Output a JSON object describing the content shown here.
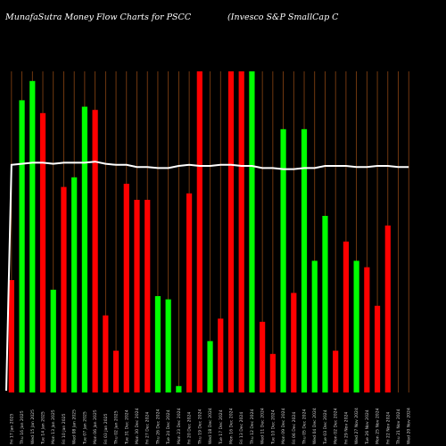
{
  "title_left": "MunafaSutra  Money Flow  Charts for PSCC",
  "title_right": "(Invesco  S&P  SmallCap  C",
  "colors": {
    "background": "#000000",
    "up": "#00ff00",
    "down": "#ff0000",
    "gridline": "#8b4513",
    "flow_line": "#ffffff"
  },
  "chart_data": {
    "type": "bar",
    "ylim": [
      0,
      100
    ],
    "categories": [
      "Fri 17 Jan 2025",
      "Thu 16 Jan 2025",
      "Wed 15 Jan 2025",
      "Tue 14 Jan 2025",
      "Mon 13 Jan 2025",
      "Fri 10 Jan 2025",
      "Wed 08 Jan 2025",
      "Tue 07 Jan 2025",
      "Mon 06 Jan 2025",
      "Fri 03 Jan 2025",
      "Thu 02 Jan 2025",
      "Tue 31 Dec 2024",
      "Mon 30 Dec 2024",
      "Fri 27 Dec 2024",
      "Thu 26 Dec 2024",
      "Tue 24 Dec 2024",
      "Mon 23 Dec 2024",
      "Fri 20 Dec 2024",
      "Thu 19 Dec 2024",
      "Wed 18 Dec 2024",
      "Tue 17 Dec 2024",
      "Mon 16 Dec 2024",
      "Fri 13 Dec 2024",
      "Thu 12 Dec 2024",
      "Wed 11 Dec 2024",
      "Tue 10 Dec 2024",
      "Mon 09 Dec 2024",
      "Fri 06 Dec 2024",
      "Thu 05 Dec 2024",
      "Wed 04 Dec 2024",
      "Tue 03 Dec 2024",
      "Mon 02 Dec 2024",
      "Fri 29 Nov 2024",
      "Wed 27 Nov 2024",
      "Tue 26 Nov 2024",
      "Mon 25 Nov 2024",
      "Fri 22 Nov 2024",
      "Thu 21 Nov 2024",
      "Wed 20 Nov 2024"
    ],
    "values": [
      35,
      91,
      97,
      87,
      32,
      64,
      67,
      89,
      88,
      24,
      13,
      65,
      60,
      60,
      30,
      29,
      2,
      62,
      100,
      16,
      23,
      100,
      100,
      100,
      22,
      12,
      82,
      31,
      82,
      41,
      55,
      13,
      47,
      41,
      39,
      27,
      52,
      0,
      0
    ],
    "directions": [
      "down",
      "up",
      "up",
      "down",
      "up",
      "down",
      "up",
      "up",
      "down",
      "down",
      "down",
      "down",
      "down",
      "down",
      "up",
      "up",
      "up",
      "down",
      "down",
      "up",
      "down",
      "down",
      "down",
      "up",
      "down",
      "down",
      "up",
      "down",
      "up",
      "up",
      "up",
      "down",
      "down",
      "up",
      "down",
      "down",
      "down",
      "down",
      "down"
    ],
    "line_values": [
      71,
      72,
      73,
      73,
      72,
      73,
      73,
      73,
      74,
      72,
      71,
      71,
      69,
      69,
      68,
      68,
      70,
      71,
      70,
      70,
      71,
      71,
      70,
      70,
      68,
      68,
      67,
      67,
      68,
      68,
      70,
      70,
      70,
      69,
      69,
      70,
      70,
      69,
      69
    ]
  }
}
